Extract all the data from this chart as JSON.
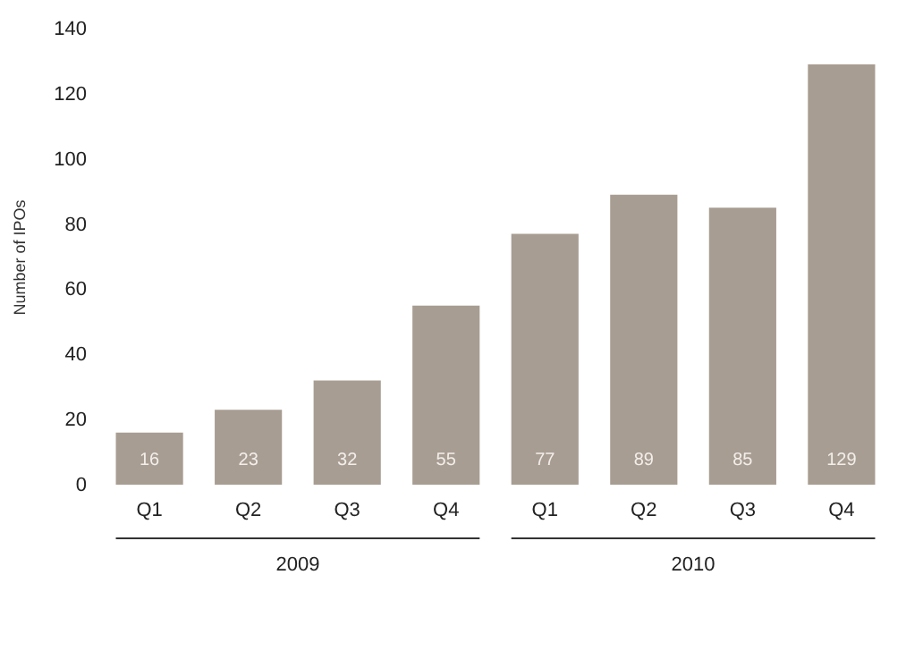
{
  "chart_data": {
    "type": "bar",
    "ylabel": "Number of IPOs",
    "categories": [
      "Q1",
      "Q2",
      "Q3",
      "Q4",
      "Q1",
      "Q2",
      "Q3",
      "Q4"
    ],
    "values": [
      16,
      23,
      32,
      55,
      77,
      89,
      85,
      129
    ],
    "color": "#a89d92",
    "ylim": [
      0,
      140
    ],
    "yticks": [
      0,
      20,
      40,
      60,
      80,
      100,
      120,
      140
    ],
    "grid": false,
    "data_labels": true,
    "annotations": [
      "2009",
      "2010"
    ]
  }
}
